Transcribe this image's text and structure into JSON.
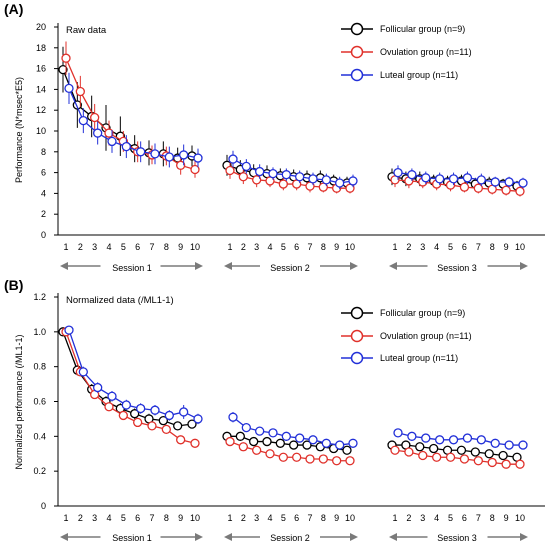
{
  "figure": {
    "panels": [
      "(A)",
      "(B)"
    ]
  },
  "colors": {
    "follicular": "#000000",
    "ovulation": "#e0312b",
    "luteal": "#2230d8",
    "axis": "#000000",
    "session_arrow": "#7a7a7a"
  },
  "chart_data": [
    {
      "type": "line",
      "panel": "(A)",
      "title": "Raw data",
      "ylabel": "Performance (N*msec*E5)",
      "xlabel": "",
      "ylim": [
        0,
        20
      ],
      "yticks": [
        0,
        2,
        4,
        6,
        8,
        10,
        12,
        14,
        16,
        18,
        20
      ],
      "x": [
        1,
        2,
        3,
        4,
        5,
        6,
        7,
        8,
        9,
        10
      ],
      "sessions": [
        "Session 1",
        "Session 2",
        "Session 3"
      ],
      "legend_position": "top-right",
      "grid": false,
      "series": [
        {
          "name": "Follicular group (n=9)",
          "key": "follicular",
          "values": [
            [
              15.9,
              12.5,
              11.4,
              10.3,
              9.5,
              8.3,
              7.9,
              7.8,
              7.4,
              7.6
            ],
            [
              6.7,
              6.3,
              6.0,
              5.9,
              5.7,
              5.6,
              5.5,
              5.5,
              5.2,
              5.0
            ],
            [
              5.6,
              5.4,
              5.4,
              5.2,
              5.1,
              5.2,
              4.9,
              5.0,
              4.9,
              4.7
            ]
          ],
          "errors": [
            [
              2.2,
              2.2,
              2.0,
              2.2,
              1.9,
              1.3,
              1.2,
              1.2,
              1.0,
              1.0
            ],
            [
              1.0,
              0.9,
              0.8,
              0.8,
              0.7,
              0.7,
              0.7,
              0.7,
              0.6,
              0.6
            ],
            [
              0.8,
              0.7,
              0.7,
              0.6,
              0.6,
              0.6,
              0.6,
              0.6,
              0.5,
              0.5
            ]
          ]
        },
        {
          "name": "Ovulation group (n=11)",
          "key": "ovulation",
          "values": [
            [
              17.0,
              13.8,
              11.3,
              9.8,
              9.0,
              8.0,
              7.7,
              7.6,
              6.7,
              6.3
            ],
            [
              6.2,
              5.6,
              5.3,
              5.2,
              4.9,
              4.9,
              4.7,
              4.6,
              4.5,
              4.5
            ],
            [
              5.3,
              5.2,
              5.1,
              4.9,
              4.8,
              4.6,
              4.5,
              4.4,
              4.3,
              4.2
            ]
          ],
          "errors": [
            [
              1.6,
              1.5,
              1.3,
              1.2,
              1.0,
              1.0,
              0.9,
              0.9,
              0.9,
              0.8
            ],
            [
              0.8,
              0.7,
              0.7,
              0.6,
              0.6,
              0.6,
              0.6,
              0.5,
              0.5,
              0.5
            ],
            [
              0.7,
              0.7,
              0.6,
              0.6,
              0.6,
              0.5,
              0.5,
              0.5,
              0.5,
              0.5
            ]
          ]
        },
        {
          "name": "Luteal group (n=11)",
          "key": "luteal",
          "values": [
            [
              14.1,
              11.0,
              9.8,
              9.0,
              8.5,
              8.0,
              7.8,
              7.5,
              7.7,
              7.4
            ],
            [
              7.3,
              6.6,
              6.1,
              5.9,
              5.8,
              5.6,
              5.4,
              5.3,
              5.0,
              5.2
            ],
            [
              6.0,
              5.8,
              5.5,
              5.4,
              5.4,
              5.5,
              5.3,
              5.1,
              5.1,
              5.0
            ]
          ],
          "errors": [
            [
              1.5,
              1.2,
              1.1,
              1.1,
              1.1,
              1.0,
              1.0,
              1.0,
              1.0,
              0.9
            ],
            [
              0.8,
              0.7,
              0.7,
              0.6,
              0.6,
              0.6,
              0.6,
              0.6,
              0.6,
              0.6
            ],
            [
              0.7,
              0.6,
              0.6,
              0.6,
              0.6,
              0.6,
              0.6,
              0.5,
              0.5,
              0.5
            ]
          ]
        }
      ]
    },
    {
      "type": "line",
      "panel": "(B)",
      "title": "Normalized data (/ML1-1)",
      "ylabel": "Normalized performance (/ML1-1)",
      "xlabel": "",
      "ylim": [
        0,
        1.2
      ],
      "yticks": [
        "0",
        "0.2",
        "0.4",
        "0.6",
        "0.8",
        "1.0",
        "1.2"
      ],
      "x": [
        1,
        2,
        3,
        4,
        5,
        6,
        7,
        8,
        9,
        10
      ],
      "sessions": [
        "Session 1",
        "Session 2",
        "Session 3"
      ],
      "legend_position": "top-right",
      "grid": false,
      "series": [
        {
          "name": "Follicular group (n=9)",
          "key": "follicular",
          "values": [
            [
              1.0,
              0.78,
              0.67,
              0.6,
              0.56,
              0.53,
              0.5,
              0.49,
              0.46,
              0.47
            ],
            [
              0.4,
              0.4,
              0.37,
              0.37,
              0.36,
              0.35,
              0.35,
              0.34,
              0.33,
              0.32
            ],
            [
              0.35,
              0.35,
              0.34,
              0.33,
              0.32,
              0.32,
              0.31,
              0.3,
              0.29,
              0.28
            ]
          ],
          "errors": [
            [
              0.0,
              0.03,
              0.03,
              0.03,
              0.03,
              0.03,
              0.03,
              0.02,
              0.02,
              0.02
            ],
            [
              0.02,
              0.02,
              0.02,
              0.02,
              0.02,
              0.02,
              0.02,
              0.02,
              0.02,
              0.02
            ],
            [
              0.02,
              0.02,
              0.02,
              0.02,
              0.02,
              0.02,
              0.02,
              0.02,
              0.02,
              0.02
            ]
          ]
        },
        {
          "name": "Ovulation group (n=11)",
          "key": "ovulation",
          "values": [
            [
              1.0,
              0.77,
              0.64,
              0.57,
              0.52,
              0.48,
              0.46,
              0.44,
              0.38,
              0.36
            ],
            [
              0.37,
              0.34,
              0.32,
              0.3,
              0.28,
              0.28,
              0.27,
              0.27,
              0.26,
              0.26
            ],
            [
              0.32,
              0.31,
              0.29,
              0.28,
              0.28,
              0.27,
              0.26,
              0.25,
              0.24,
              0.24
            ]
          ],
          "errors": [
            [
              0.0,
              0.02,
              0.02,
              0.02,
              0.02,
              0.02,
              0.02,
              0.02,
              0.02,
              0.02
            ],
            [
              0.02,
              0.02,
              0.02,
              0.01,
              0.01,
              0.01,
              0.01,
              0.01,
              0.01,
              0.01
            ],
            [
              0.02,
              0.02,
              0.01,
              0.01,
              0.01,
              0.01,
              0.01,
              0.01,
              0.01,
              0.01
            ]
          ]
        },
        {
          "name": "Luteal group (n=11)",
          "key": "luteal",
          "values": [
            [
              1.01,
              0.77,
              0.68,
              0.63,
              0.58,
              0.56,
              0.55,
              0.52,
              0.54,
              0.5
            ],
            [
              0.51,
              0.45,
              0.43,
              0.42,
              0.4,
              0.39,
              0.38,
              0.36,
              0.35,
              0.36
            ],
            [
              0.42,
              0.4,
              0.39,
              0.38,
              0.38,
              0.39,
              0.38,
              0.36,
              0.35,
              0.35
            ]
          ],
          "errors": [
            [
              0.0,
              0.03,
              0.03,
              0.03,
              0.03,
              0.03,
              0.03,
              0.03,
              0.04,
              0.03
            ],
            [
              0.03,
              0.02,
              0.02,
              0.02,
              0.02,
              0.02,
              0.02,
              0.02,
              0.02,
              0.02
            ],
            [
              0.02,
              0.02,
              0.02,
              0.02,
              0.02,
              0.02,
              0.02,
              0.02,
              0.02,
              0.02
            ]
          ]
        }
      ]
    }
  ]
}
